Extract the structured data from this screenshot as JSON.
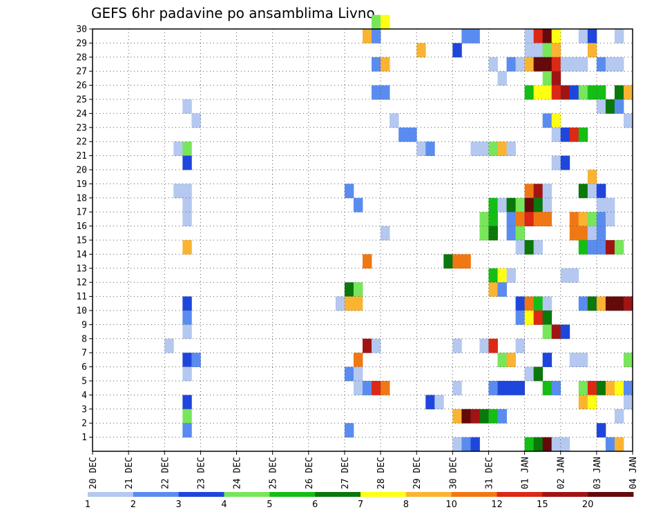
{
  "chart_data": {
    "type": "heatmap",
    "title": "GEFS 6hr padavine po ansamblima Livno",
    "xlabel": "",
    "ylabel": "",
    "x_ticks": [
      "20 DEC",
      "21 DEC",
      "22 DEC",
      "23 DEC",
      "24 DEC",
      "25 DEC",
      "26 DEC",
      "27 DEC",
      "28 DEC",
      "29 DEC",
      "30 DEC",
      "31 DEC",
      "01 JAN",
      "02 JAN",
      "03 JAN",
      "04 JAN"
    ],
    "y_ticks": [
      "1",
      "2",
      "3",
      "4",
      "5",
      "6",
      "7",
      "8",
      "9",
      "10",
      "11",
      "12",
      "13",
      "14",
      "15",
      "16",
      "17",
      "18",
      "19",
      "20",
      "21",
      "22",
      "23",
      "24",
      "25",
      "26",
      "27",
      "28",
      "29",
      "30"
    ],
    "grid": true,
    "colorbar": {
      "labels": [
        "1",
        "2",
        "3",
        "4",
        "5",
        "6",
        "7",
        "8",
        "10",
        "12",
        "15",
        "20"
      ],
      "colors": [
        "#b4c8f0",
        "#5a8cf0",
        "#1e46dc",
        "#78e65a",
        "#14be14",
        "#0a780a",
        "#ffff14",
        "#fab432",
        "#f07814",
        "#dc2814",
        "#a01414",
        "#640a0a"
      ]
    },
    "cells": [
      [
        7.75,
        30,
        4
      ],
      [
        8.0,
        30,
        7
      ],
      [
        7.5,
        29,
        8
      ],
      [
        7.75,
        29,
        2
      ],
      [
        10.25,
        29,
        2
      ],
      [
        10.5,
        29,
        2
      ],
      [
        12.0,
        29,
        1
      ],
      [
        12.25,
        29,
        10
      ],
      [
        12.5,
        29,
        12
      ],
      [
        12.75,
        29,
        7
      ],
      [
        13.5,
        29,
        1
      ],
      [
        13.75,
        29,
        3
      ],
      [
        14.5,
        29,
        1
      ],
      [
        9.0,
        28,
        8
      ],
      [
        10.0,
        28,
        3
      ],
      [
        12.0,
        28,
        1
      ],
      [
        12.25,
        28,
        1
      ],
      [
        12.5,
        28,
        4
      ],
      [
        12.75,
        28,
        8
      ],
      [
        13.75,
        28,
        8
      ],
      [
        7.75,
        27,
        2
      ],
      [
        8.0,
        27,
        8
      ],
      [
        11.0,
        27,
        1
      ],
      [
        11.5,
        27,
        2
      ],
      [
        11.75,
        27,
        1
      ],
      [
        12.0,
        27,
        8
      ],
      [
        12.25,
        27,
        12
      ],
      [
        12.5,
        27,
        12
      ],
      [
        12.75,
        27,
        10
      ],
      [
        13.0,
        27,
        1
      ],
      [
        13.25,
        27,
        1
      ],
      [
        13.5,
        27,
        1
      ],
      [
        14.0,
        27,
        2
      ],
      [
        14.25,
        27,
        1
      ],
      [
        14.5,
        27,
        1
      ],
      [
        11.25,
        26,
        1
      ],
      [
        12.5,
        26,
        4
      ],
      [
        12.75,
        26,
        11
      ],
      [
        7.75,
        25,
        2
      ],
      [
        8.0,
        25,
        2
      ],
      [
        12.0,
        25,
        5
      ],
      [
        12.25,
        25,
        7
      ],
      [
        12.5,
        25,
        7
      ],
      [
        12.75,
        25,
        10
      ],
      [
        13.0,
        25,
        11
      ],
      [
        13.25,
        25,
        3
      ],
      [
        13.5,
        25,
        4
      ],
      [
        13.75,
        25,
        5
      ],
      [
        14.0,
        25,
        5
      ],
      [
        14.5,
        25,
        6
      ],
      [
        14.75,
        25,
        8
      ],
      [
        2.5,
        24,
        1
      ],
      [
        14.0,
        24,
        1
      ],
      [
        14.25,
        24,
        6
      ],
      [
        14.5,
        24,
        2
      ],
      [
        2.75,
        23,
        1
      ],
      [
        8.25,
        23,
        1
      ],
      [
        12.5,
        23,
        2
      ],
      [
        12.75,
        23,
        7
      ],
      [
        14.75,
        23,
        1
      ],
      [
        8.5,
        22,
        2
      ],
      [
        8.75,
        22,
        2
      ],
      [
        12.75,
        22,
        1
      ],
      [
        13.0,
        22,
        3
      ],
      [
        13.25,
        22,
        10
      ],
      [
        13.5,
        22,
        5
      ],
      [
        2.25,
        21,
        1
      ],
      [
        2.5,
        21,
        4
      ],
      [
        9.0,
        21,
        1
      ],
      [
        9.25,
        21,
        2
      ],
      [
        10.5,
        21,
        1
      ],
      [
        10.75,
        21,
        1
      ],
      [
        11.0,
        21,
        4
      ],
      [
        11.25,
        21,
        8
      ],
      [
        11.5,
        21,
        1
      ],
      [
        2.5,
        20,
        3
      ],
      [
        12.75,
        20,
        1
      ],
      [
        13.0,
        20,
        3
      ],
      [
        13.75,
        19,
        8
      ],
      [
        2.25,
        18,
        1
      ],
      [
        2.5,
        18,
        1
      ],
      [
        7.0,
        18,
        2
      ],
      [
        12.0,
        18,
        9
      ],
      [
        12.25,
        18,
        11
      ],
      [
        12.5,
        18,
        1
      ],
      [
        13.5,
        18,
        6
      ],
      [
        13.75,
        18,
        1
      ],
      [
        14.0,
        18,
        3
      ],
      [
        2.5,
        17,
        1
      ],
      [
        7.25,
        17,
        2
      ],
      [
        11.0,
        17,
        5
      ],
      [
        11.25,
        17,
        1
      ],
      [
        11.5,
        17,
        6
      ],
      [
        11.75,
        17,
        4
      ],
      [
        12.0,
        17,
        12
      ],
      [
        12.25,
        17,
        6
      ],
      [
        12.5,
        17,
        1
      ],
      [
        14.0,
        17,
        1
      ],
      [
        14.25,
        17,
        1
      ],
      [
        2.5,
        16,
        1
      ],
      [
        10.75,
        16,
        4
      ],
      [
        11.0,
        16,
        5
      ],
      [
        11.5,
        16,
        2
      ],
      [
        11.75,
        16,
        9
      ],
      [
        12.0,
        16,
        10
      ],
      [
        12.25,
        16,
        9
      ],
      [
        12.5,
        16,
        9
      ],
      [
        13.25,
        16,
        9
      ],
      [
        13.5,
        16,
        8
      ],
      [
        13.75,
        16,
        4
      ],
      [
        14.0,
        16,
        2
      ],
      [
        14.25,
        16,
        1
      ],
      [
        8.0,
        15,
        1
      ],
      [
        10.75,
        15,
        4
      ],
      [
        11.0,
        15,
        6
      ],
      [
        11.5,
        15,
        2
      ],
      [
        11.75,
        15,
        4
      ],
      [
        13.25,
        15,
        9
      ],
      [
        13.5,
        15,
        9
      ],
      [
        13.75,
        15,
        1
      ],
      [
        14.0,
        15,
        2
      ],
      [
        2.5,
        14,
        8
      ],
      [
        11.75,
        14,
        1
      ],
      [
        12.0,
        14,
        6
      ],
      [
        12.25,
        14,
        1
      ],
      [
        13.5,
        14,
        5
      ],
      [
        13.75,
        14,
        2
      ],
      [
        14.0,
        14,
        2
      ],
      [
        14.25,
        14,
        11
      ],
      [
        14.5,
        14,
        4
      ],
      [
        7.5,
        13,
        9
      ],
      [
        9.75,
        13,
        6
      ],
      [
        10.0,
        13,
        9
      ],
      [
        10.25,
        13,
        9
      ],
      [
        11.0,
        12,
        5
      ],
      [
        11.25,
        12,
        7
      ],
      [
        11.5,
        12,
        1
      ],
      [
        13.0,
        12,
        1
      ],
      [
        13.25,
        12,
        1
      ],
      [
        7.0,
        11,
        6
      ],
      [
        7.25,
        11,
        4
      ],
      [
        11.0,
        11,
        8
      ],
      [
        11.25,
        11,
        2
      ],
      [
        2.5,
        10,
        3
      ],
      [
        6.75,
        10,
        1
      ],
      [
        7.0,
        10,
        8
      ],
      [
        7.25,
        10,
        8
      ],
      [
        11.75,
        10,
        3
      ],
      [
        12.0,
        10,
        9
      ],
      [
        12.25,
        10,
        5
      ],
      [
        12.5,
        10,
        1
      ],
      [
        13.5,
        10,
        2
      ],
      [
        13.75,
        10,
        6
      ],
      [
        14.0,
        10,
        8
      ],
      [
        14.25,
        10,
        12
      ],
      [
        14.5,
        10,
        12
      ],
      [
        14.75,
        10,
        11
      ],
      [
        2.5,
        9,
        2
      ],
      [
        11.75,
        9,
        2
      ],
      [
        12.0,
        9,
        7
      ],
      [
        12.25,
        9,
        10
      ],
      [
        12.5,
        9,
        6
      ],
      [
        2.5,
        8,
        1
      ],
      [
        12.5,
        8,
        4
      ],
      [
        12.75,
        8,
        11
      ],
      [
        13.0,
        8,
        3
      ],
      [
        2.0,
        7,
        1
      ],
      [
        7.5,
        7,
        11
      ],
      [
        7.75,
        7,
        1
      ],
      [
        10.0,
        7,
        1
      ],
      [
        10.75,
        7,
        1
      ],
      [
        11.0,
        7,
        10
      ],
      [
        11.75,
        7,
        1
      ],
      [
        2.5,
        6,
        3
      ],
      [
        2.75,
        6,
        2
      ],
      [
        7.25,
        6,
        9
      ],
      [
        11.25,
        6,
        4
      ],
      [
        11.5,
        6,
        8
      ],
      [
        12.5,
        6,
        3
      ],
      [
        13.25,
        6,
        1
      ],
      [
        13.5,
        6,
        1
      ],
      [
        14.75,
        6,
        4
      ],
      [
        2.5,
        5,
        1
      ],
      [
        7.0,
        5,
        2
      ],
      [
        7.25,
        5,
        1
      ],
      [
        12.0,
        5,
        1
      ],
      [
        12.25,
        5,
        6
      ],
      [
        7.25,
        4,
        1
      ],
      [
        7.5,
        4,
        2
      ],
      [
        7.75,
        4,
        10
      ],
      [
        8.0,
        4,
        9
      ],
      [
        10.0,
        4,
        1
      ],
      [
        11.0,
        4,
        2
      ],
      [
        11.25,
        4,
        3
      ],
      [
        11.5,
        4,
        3
      ],
      [
        11.75,
        4,
        3
      ],
      [
        12.5,
        4,
        5
      ],
      [
        12.75,
        4,
        2
      ],
      [
        13.5,
        4,
        4
      ],
      [
        13.75,
        4,
        10
      ],
      [
        14.0,
        4,
        6
      ],
      [
        14.25,
        4,
        8
      ],
      [
        14.5,
        4,
        7
      ],
      [
        14.75,
        4,
        2
      ],
      [
        2.5,
        3,
        3
      ],
      [
        9.25,
        3,
        3
      ],
      [
        9.5,
        3,
        1
      ],
      [
        13.5,
        3,
        8
      ],
      [
        13.75,
        3,
        7
      ],
      [
        14.75,
        3,
        1
      ],
      [
        2.5,
        2,
        4
      ],
      [
        10.0,
        2,
        8
      ],
      [
        10.25,
        2,
        12
      ],
      [
        10.5,
        2,
        11
      ],
      [
        10.75,
        2,
        6
      ],
      [
        11.0,
        2,
        5
      ],
      [
        11.25,
        2,
        2
      ],
      [
        14.5,
        2,
        1
      ],
      [
        2.5,
        1,
        2
      ],
      [
        7.0,
        1,
        2
      ],
      [
        14.0,
        1,
        3
      ],
      [
        10.0,
        0,
        1
      ],
      [
        10.25,
        0,
        2
      ],
      [
        10.5,
        0,
        3
      ],
      [
        12.0,
        0,
        5
      ],
      [
        12.25,
        0,
        6
      ],
      [
        12.5,
        0,
        12
      ],
      [
        12.75,
        0,
        1
      ],
      [
        13.0,
        0,
        1
      ],
      [
        14.25,
        0,
        2
      ],
      [
        14.5,
        0,
        8
      ]
    ]
  }
}
